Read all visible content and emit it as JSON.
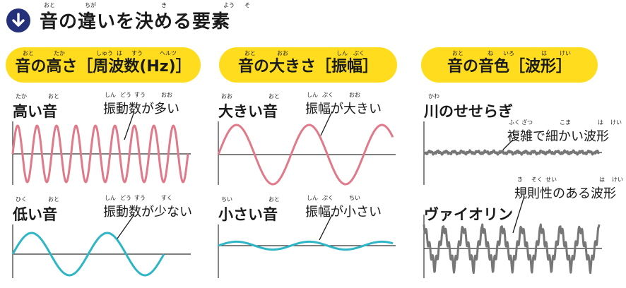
{
  "header": {
    "title": "音の違いを決める要素",
    "icon": "arrow-down-icon",
    "icon_color": "#24307a",
    "ruby": [
      "おと",
      "ちが",
      "き",
      "よう",
      "そ"
    ]
  },
  "columns": [
    {
      "heading": "音の高さ［周波数(Hz)］",
      "ruby": [
        "おと",
        "たか",
        "しゅう",
        "は",
        "すう",
        "ヘルツ"
      ],
      "wave_color": "#e07a8a",
      "top": {
        "label": "高い音",
        "label_ruby": [
          "たか",
          "おと"
        ],
        "note": "振動数が多い",
        "note_ruby": [
          "しん",
          "どう",
          "すう",
          "おお"
        ],
        "wave": {
          "shape": "sine",
          "cycles": 9,
          "amplitude": 1.0
        }
      },
      "bottom": {
        "label": "低い音",
        "label_ruby": [
          "ひく",
          "おと"
        ],
        "note": "振動数が少ない",
        "note_ruby": [
          "しん",
          "どう",
          "すう",
          "すく"
        ],
        "wave": {
          "shape": "sine",
          "cycles": 2,
          "amplitude": 1.0
        }
      }
    },
    {
      "heading": "音の大きさ［振幅］",
      "ruby": [
        "おと",
        "おお",
        "しん",
        "ぷく"
      ],
      "wave_color": "#e07a8a",
      "top": {
        "label": "大きい音",
        "label_ruby": [
          "おお",
          "おと"
        ],
        "note": "振幅が大きい",
        "note_ruby": [
          "しん",
          "ぷく",
          "おお"
        ],
        "wave": {
          "shape": "sine",
          "cycles": 2.4,
          "amplitude": 1.0
        }
      },
      "bottom": {
        "label": "小さい音",
        "label_ruby": [
          "ちい",
          "おと"
        ],
        "note": "振幅が小さい",
        "note_ruby": [
          "しん",
          "ぷく",
          "ちい"
        ],
        "wave": {
          "shape": "sine",
          "cycles": 2.4,
          "amplitude": 0.4
        }
      }
    },
    {
      "heading": "音の音色［波形］",
      "ruby": [
        "おと",
        "ね",
        "いろ",
        "は",
        "けい"
      ],
      "wave_color": "#777777",
      "top": {
        "label": "川のせせらぎ",
        "label_ruby": [
          "かわ"
        ],
        "note": "複雑で細かい波形",
        "note_ruby": [
          "ふく",
          "ざつ",
          "こま",
          "は",
          "けい"
        ],
        "wave": {
          "shape": "noise",
          "cycles": 22,
          "amplitude": 0.25
        }
      },
      "bottom": {
        "label": "ヴァイオリン",
        "label_ruby": [],
        "note": "規則性のある波形",
        "note_ruby": [
          "き",
          "そく",
          "せい",
          "は",
          "けい"
        ],
        "wave": {
          "shape": "sawtooth",
          "cycles": 9,
          "amplitude": 1.0
        }
      }
    }
  ],
  "axis_color": "#333333",
  "wave_color_low": "#2fb6c6"
}
